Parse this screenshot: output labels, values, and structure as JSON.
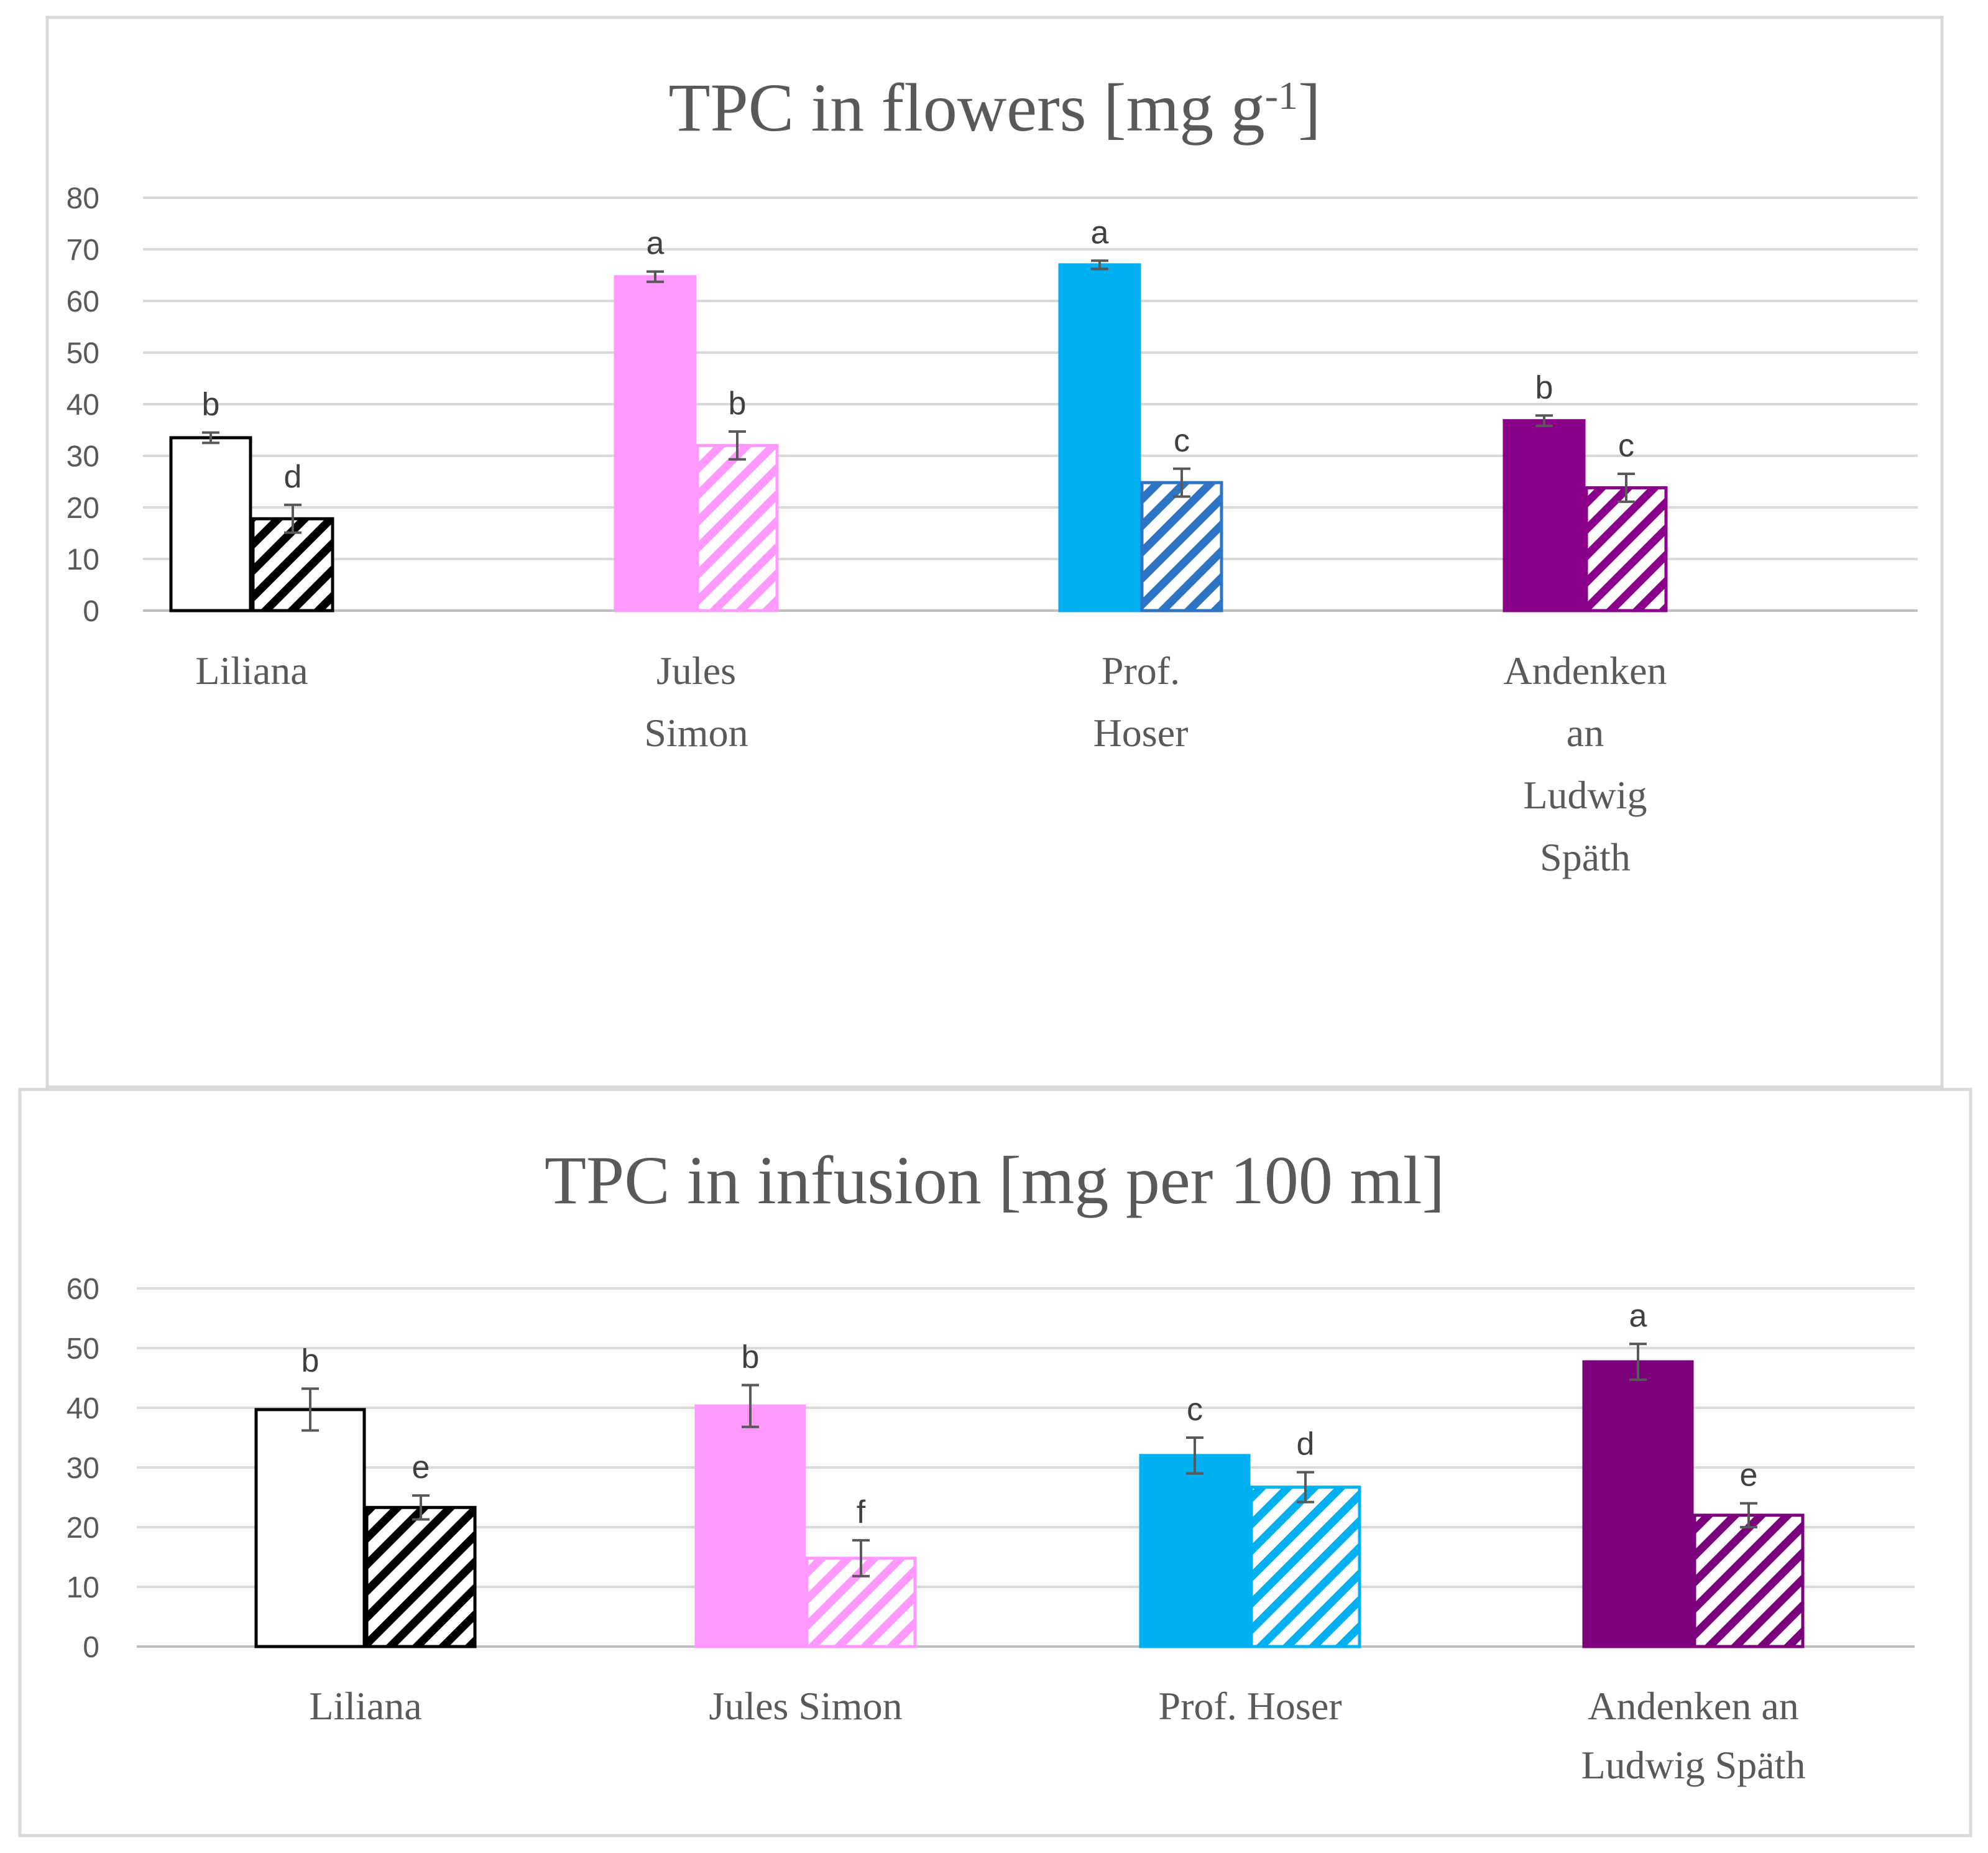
{
  "chart_data": [
    {
      "type": "bar",
      "title": "TPC in flowers [mg g",
      "title_superscript": "-1",
      "title_close": "]",
      "xlabel": "",
      "ylabel": "",
      "ylim": [
        0,
        80
      ],
      "yticks": [
        0,
        10,
        20,
        30,
        40,
        50,
        60,
        70,
        80
      ],
      "grid": true,
      "categories": [
        [
          "Liliana"
        ],
        [
          "Jules",
          "Simon"
        ],
        [
          "Prof.",
          "Hoser"
        ],
        [
          "Andenken",
          "an",
          "Ludwig",
          "Späth"
        ]
      ],
      "series": [
        {
          "name": "solid",
          "pattern": "solid",
          "values": [
            33.5,
            64.7,
            67.0,
            36.8
          ],
          "errors": [
            1.0,
            1.0,
            0.8,
            1.0
          ],
          "letters": [
            "b",
            "a",
            "a",
            "b"
          ]
        },
        {
          "name": "hatched",
          "pattern": "hatched",
          "values": [
            17.8,
            32.0,
            24.8,
            23.8
          ],
          "errors": [
            2.7,
            2.7,
            2.7,
            2.7
          ],
          "letters": [
            "d",
            "b",
            "c",
            "c"
          ]
        }
      ],
      "colors": [
        {
          "fill": "#ffffff",
          "stroke": "#000000",
          "hatch": "#000000",
          "hatch_bg": "#ffffff"
        },
        {
          "fill": "#ff99ff",
          "stroke": "#ff99ff",
          "hatch": "#ff99ff",
          "hatch_bg": "#ffffff"
        },
        {
          "fill": "#00b0f0",
          "stroke": "#00b0f0",
          "hatch": "#2e74c4",
          "hatch_bg": "#ffffff"
        },
        {
          "fill": "#8b008b",
          "stroke": "#8b008b",
          "hatch": "#8b008b",
          "hatch_bg": "#ffffff"
        }
      ]
    },
    {
      "type": "bar",
      "title": "TPC in infusion [mg per 100 ml]",
      "title_superscript": "",
      "title_close": "",
      "xlabel": "",
      "ylabel": "",
      "ylim": [
        0,
        60
      ],
      "yticks": [
        0,
        10,
        20,
        30,
        40,
        50,
        60
      ],
      "grid": true,
      "categories": [
        [
          "Liliana"
        ],
        [
          "Jules Simon"
        ],
        [
          "Prof. Hoser"
        ],
        [
          "Andenken an",
          "Ludwig Späth"
        ]
      ],
      "series": [
        {
          "name": "solid",
          "pattern": "solid",
          "values": [
            39.7,
            40.3,
            32.0,
            47.7
          ],
          "errors": [
            3.5,
            3.5,
            3.0,
            3.0
          ],
          "letters": [
            "b",
            "b",
            "c",
            "a"
          ]
        },
        {
          "name": "hatched",
          "pattern": "hatched",
          "values": [
            23.3,
            14.8,
            26.7,
            22.0
          ],
          "errors": [
            2.0,
            3.0,
            2.5,
            2.0
          ],
          "letters": [
            "e",
            "f",
            "d",
            "e"
          ]
        }
      ],
      "colors": [
        {
          "fill": "#ffffff",
          "stroke": "#000000",
          "hatch": "#000000",
          "hatch_bg": "#ffffff"
        },
        {
          "fill": "#ff99ff",
          "stroke": "#ff99ff",
          "hatch": "#ff99ff",
          "hatch_bg": "#ffffff"
        },
        {
          "fill": "#00b0f0",
          "stroke": "#00b0f0",
          "hatch": "#00b0f0",
          "hatch_bg": "#ffffff"
        },
        {
          "fill": "#7b007b",
          "stroke": "#7b007b",
          "hatch": "#7b007b",
          "hatch_bg": "#ffffff"
        }
      ]
    }
  ]
}
